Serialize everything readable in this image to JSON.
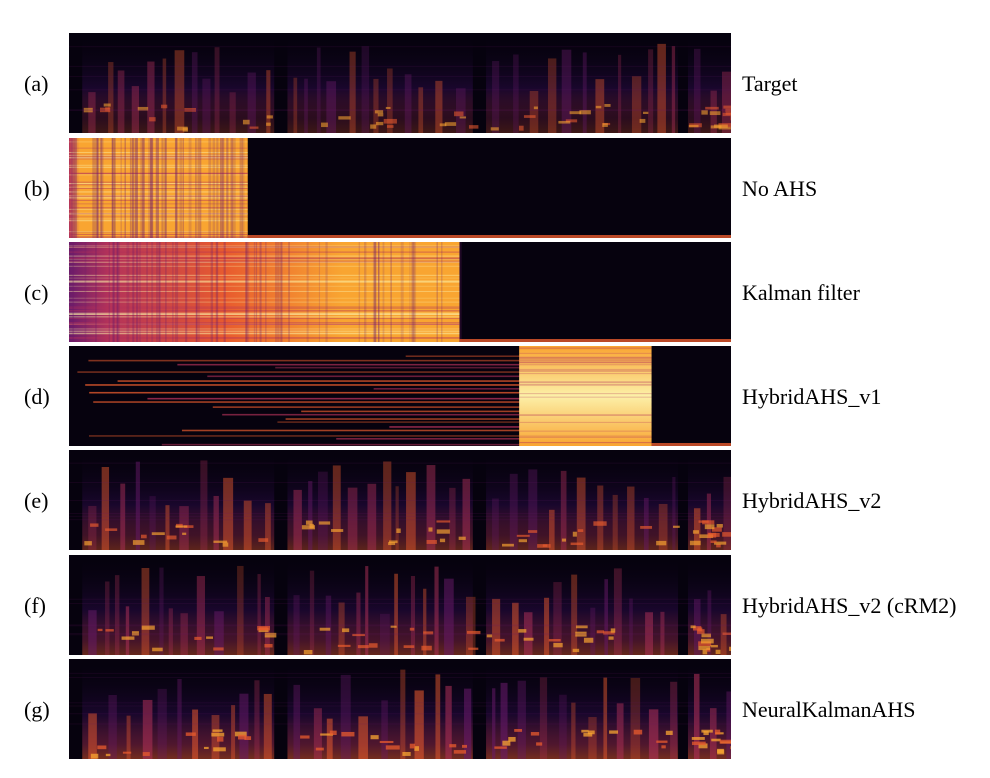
{
  "figure": {
    "rows": [
      {
        "label": "(a)",
        "name": "Target",
        "type": "speech",
        "intensity": 0.35,
        "energy_end": 1.0
      },
      {
        "label": "(b)",
        "name": "No AHS",
        "type": "howling",
        "energy_end": 0.27,
        "onset": 0.0
      },
      {
        "label": "(c)",
        "name": "Kalman filter",
        "type": "howling",
        "energy_end": 0.59,
        "onset": 0.0
      },
      {
        "label": "(d)",
        "name": "HybridAHS_v1",
        "type": "harmonic-growth",
        "energy_end": 0.88,
        "onset": 0.68
      },
      {
        "label": "(e)",
        "name": "HybridAHS_v2",
        "type": "speech",
        "intensity": 0.55,
        "energy_end": 1.0
      },
      {
        "label": "(f)",
        "name": "HybridAHS_v2 (cRM2)",
        "type": "speech",
        "intensity": 0.6,
        "energy_end": 1.0
      },
      {
        "label": "(g)",
        "name": "NeuralKalmanAHS",
        "type": "speech",
        "intensity": 0.7,
        "energy_end": 1.0
      }
    ],
    "colormap": [
      "#06020e",
      "#2c0b4a",
      "#6a1b6b",
      "#b3325a",
      "#e85b2e",
      "#f9a531",
      "#fcf0a8"
    ]
  }
}
